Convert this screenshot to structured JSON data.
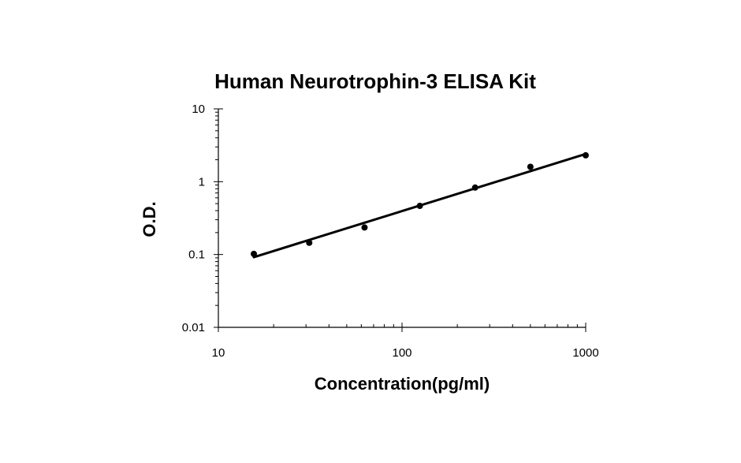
{
  "chart_data": {
    "type": "scatter",
    "title": "Human Neurotrophin-3  ELISA Kit",
    "xlabel": "Concentration(pg/ml)",
    "ylabel": "O.D.",
    "x_scale": "log",
    "y_scale": "log",
    "xlim": [
      10,
      1000
    ],
    "ylim": [
      0.01,
      10
    ],
    "x_ticks": [
      "10",
      "100",
      "1000"
    ],
    "y_ticks": [
      "0.01",
      "0.1",
      "1",
      "10"
    ],
    "grid": false,
    "legend": "none",
    "series": [
      {
        "x": [
          15.6,
          31.25,
          62.5,
          125,
          250,
          500,
          1000
        ],
        "y": [
          0.102,
          0.145,
          0.235,
          0.465,
          0.83,
          1.6,
          2.3
        ]
      }
    ],
    "fit_line": {
      "x": [
        15.6,
        1000
      ],
      "y": [
        0.092,
        2.4
      ]
    }
  }
}
